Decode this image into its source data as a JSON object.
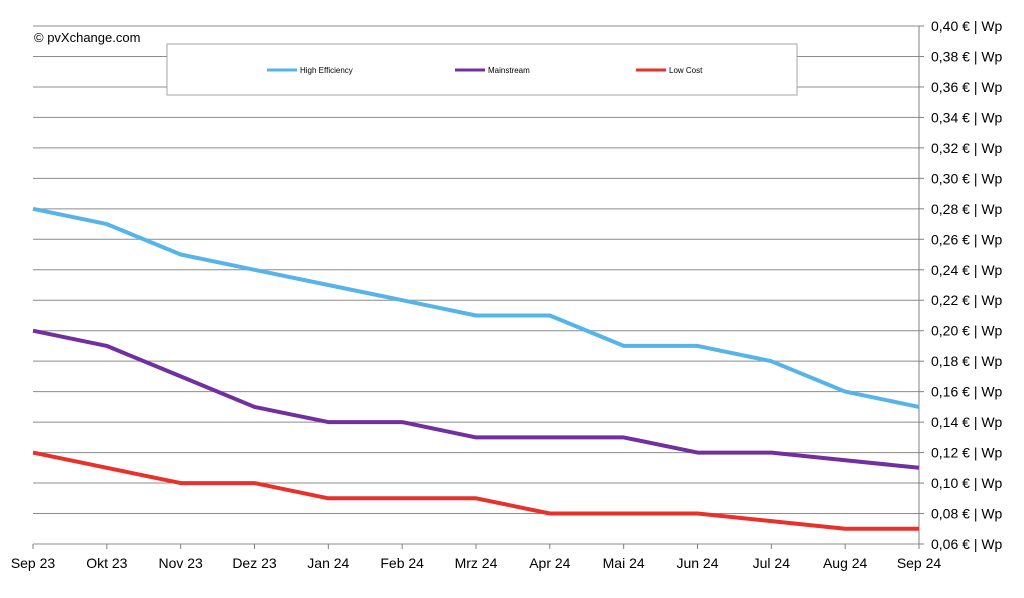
{
  "chart_data": {
    "type": "line",
    "title": "",
    "xlabel": "",
    "ylabel": "",
    "watermark": "© pvXchange.com",
    "categories": [
      "Sep 23",
      "Okt 23",
      "Nov 23",
      "Dez 23",
      "Jan 24",
      "Feb 24",
      "Mrz 24",
      "Apr 24",
      "Mai 24",
      "Jun 24",
      "Jul 24",
      "Aug 24",
      "Sep 24"
    ],
    "ylim": [
      0.06,
      0.4
    ],
    "y_ticks": [
      "0,06 € | Wp",
      "0,08 € | Wp",
      "0,10 € | Wp",
      "0,12 € | Wp",
      "0,14 € | Wp",
      "0,16 € | Wp",
      "0,18 € | Wp",
      "0,20 € | Wp",
      "0,22 € | Wp",
      "0,24 € | Wp",
      "0,26 € | Wp",
      "0,28 € | Wp",
      "0,30 € | Wp",
      "0,32 € | Wp",
      "0,34 € | Wp",
      "0,36 € | Wp",
      "0,38 € | Wp",
      "0,40 € | Wp"
    ],
    "y_axis_side": "right",
    "grid": true,
    "legend_position": "top-center",
    "series": [
      {
        "name": "High Efficiency",
        "color": "#56b4e9",
        "values": [
          0.28,
          0.27,
          0.25,
          0.24,
          0.23,
          0.22,
          0.21,
          0.21,
          0.19,
          0.19,
          0.18,
          0.16,
          0.15
        ]
      },
      {
        "name": "Mainstream",
        "color": "#7030a0",
        "values": [
          0.2,
          0.19,
          0.17,
          0.15,
          0.14,
          0.14,
          0.13,
          0.13,
          0.13,
          0.12,
          0.12,
          0.115,
          0.11
        ]
      },
      {
        "name": "Low Cost",
        "color": "#e8312a",
        "values": [
          0.12,
          0.11,
          0.1,
          0.1,
          0.09,
          0.09,
          0.09,
          0.08,
          0.08,
          0.08,
          0.075,
          0.07,
          0.07
        ]
      }
    ]
  }
}
